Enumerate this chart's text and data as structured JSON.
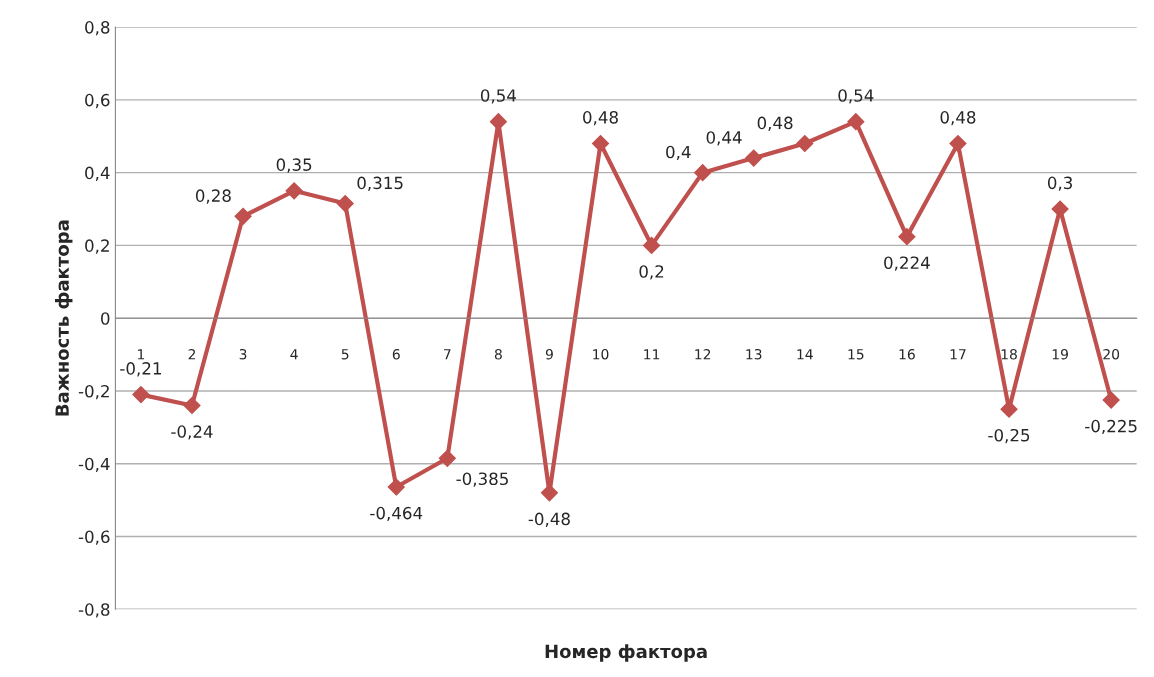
{
  "chart_data": {
    "type": "line",
    "xlabel": "Номер фактора",
    "ylabel": "Важность фактора",
    "categories": [
      "1",
      "2",
      "3",
      "4",
      "5",
      "6",
      "7",
      "8",
      "9",
      "10",
      "11",
      "12",
      "13",
      "14",
      "15",
      "16",
      "17",
      "18",
      "19",
      "20"
    ],
    "series": [
      {
        "color": "#c0504d",
        "values": [
          -0.21,
          -0.24,
          0.28,
          0.35,
          0.315,
          -0.464,
          -0.385,
          0.54,
          -0.48,
          0.48,
          0.2,
          0.4,
          0.44,
          0.48,
          0.54,
          0.224,
          0.48,
          -0.25,
          0.3,
          -0.225
        ],
        "value_labels": [
          "-0,21",
          "-0,24",
          "0,28",
          "0,35",
          "0,315",
          "-0,464",
          "-0,385",
          "0,54",
          "-0,48",
          "0,48",
          "0,2",
          "0,4",
          "0,44",
          "0,48",
          "0,54",
          "0,224",
          "0,48",
          "-0,25",
          "0,3",
          "-0,225"
        ]
      }
    ],
    "ylim": [
      -0.8,
      0.8
    ],
    "yticks": [
      {
        "value": -0.8,
        "label": "-0,8"
      },
      {
        "value": -0.6,
        "label": "-0,6"
      },
      {
        "value": -0.4,
        "label": "-0,4"
      },
      {
        "value": -0.2,
        "label": "-0,2"
      },
      0,
      {
        "value": 0.2,
        "label": "0,2"
      },
      {
        "value": 0.4,
        "label": "0,4"
      },
      {
        "value": 0.6,
        "label": "0,6"
      },
      {
        "value": 0.8,
        "label": "0,8"
      }
    ],
    "grid": "y",
    "marker": "diamond",
    "line_style": "solid"
  }
}
